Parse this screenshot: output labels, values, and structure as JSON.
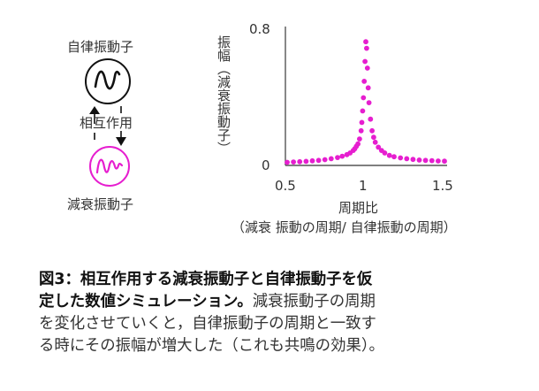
{
  "diagram": {
    "self_oscillator_label": "自律振動子",
    "interaction_label": "相互作用",
    "damped_oscillator_label": "減衰振動子",
    "colors": {
      "self_oscillator": "#111111",
      "damped_oscillator": "#e61ecf"
    },
    "icons": [
      "self-oscillation-wave-icon",
      "damped-oscillation-wave-icon",
      "arrow-up-icon",
      "arrow-down-icon"
    ]
  },
  "chart_data": {
    "type": "scatter",
    "ylabel": "振幅（減衰振動子）",
    "xlabel": "周期比",
    "xlabel_note": "（減衰 振動の周期/ 自律振動の周期）",
    "xlim": [
      0.5,
      1.5
    ],
    "ylim": [
      0,
      0.8
    ],
    "xticks": [
      "0.5",
      "1",
      "1.5"
    ],
    "yticks": [
      "0",
      "0.8"
    ],
    "grid": false,
    "marker_color": "#e61ecf",
    "series": [
      {
        "x": [
          0.5,
          0.54,
          0.58,
          0.62,
          0.66,
          0.7,
          0.74,
          0.78,
          0.82,
          0.85,
          0.88,
          0.9,
          0.92,
          0.93,
          0.94,
          0.95,
          0.96,
          0.97,
          0.975,
          0.98,
          0.985,
          0.99,
          0.995,
          1.0,
          1.005,
          1.01,
          1.015,
          1.02,
          1.03,
          1.04,
          1.05,
          1.06,
          1.08,
          1.1,
          1.12,
          1.15,
          1.18,
          1.22,
          1.26,
          1.3,
          1.34,
          1.38,
          1.42,
          1.46,
          1.5
        ],
        "y": [
          0.008,
          0.01,
          0.012,
          0.014,
          0.017,
          0.02,
          0.024,
          0.03,
          0.037,
          0.045,
          0.055,
          0.065,
          0.08,
          0.09,
          0.105,
          0.12,
          0.15,
          0.2,
          0.25,
          0.32,
          0.4,
          0.5,
          0.62,
          0.74,
          0.7,
          0.58,
          0.46,
          0.37,
          0.27,
          0.2,
          0.16,
          0.13,
          0.1,
          0.08,
          0.065,
          0.05,
          0.042,
          0.035,
          0.03,
          0.026,
          0.022,
          0.02,
          0.018,
          0.016,
          0.015
        ]
      }
    ]
  },
  "caption": {
    "bold_line1": "図3：相互作用する減衰振動子と自律振動子を仮",
    "bold_line2": "定した数値シミュレーション。",
    "normal_line2": "減衰振動子の周期",
    "line3": "を変化させていくと，自律振動子の周期と一致す",
    "line4": "る時にその振幅が増大した（これも共鳴の効果）。"
  }
}
